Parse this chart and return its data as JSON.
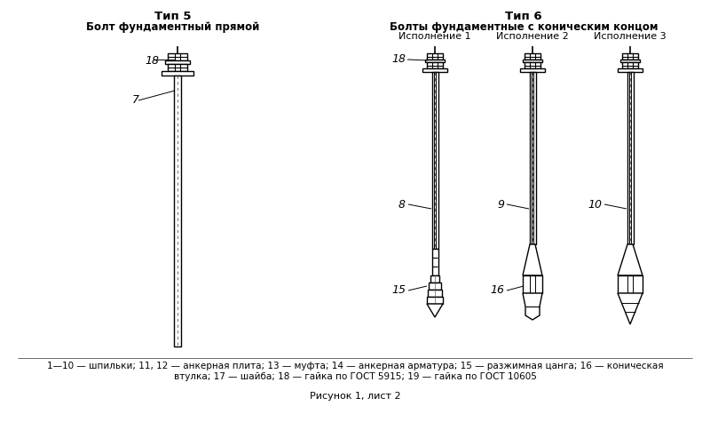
{
  "bg_color": "#ffffff",
  "line_color": "#000000",
  "title5": "Тип 5",
  "subtitle5": "Болт фундаментный прямой",
  "title6": "Тип 6",
  "subtitle6": "Болты фундаментные с коническим концом",
  "ispolnenie1": "Исполнение 1",
  "ispolnenie2": "Исполнение 2",
  "ispolnenie3": "Исполнение 3",
  "footnote1": "1—10 — шпильки; 11, 12 — анкерная плита; 13 — муфта; 14 — анкерная арматура; 15 — разжимная цанга; 16 — коническая",
  "footnote2": "втулка; 17 — шайба; 18 — гайка по ГОСТ 5915; 19 — гайка по ГОСТ 10605",
  "footnote3": "Рисунок 1, лист 2",
  "label_18_t5": "18",
  "label_7": "7",
  "label_18_t6": "18",
  "label_8": "8",
  "label_15": "15",
  "label_9": "9",
  "label_16": "16",
  "label_10": "10"
}
